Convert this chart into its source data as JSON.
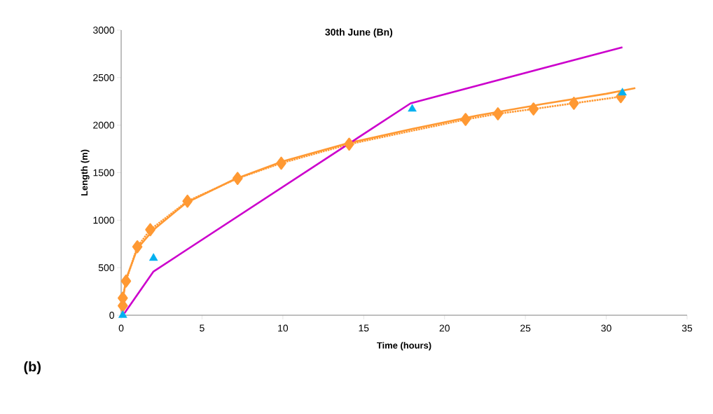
{
  "chart_data": {
    "type": "line",
    "title": "30th June (Bn)",
    "xlabel": "Time (hours)",
    "ylabel": "Length (m)",
    "annotations": [
      "(b)"
    ],
    "xlim": [
      0,
      35
    ],
    "xticks": [
      0,
      5,
      10,
      15,
      20,
      25,
      30,
      35
    ],
    "ylim": [
      0,
      3000
    ],
    "yticks": [
      0,
      500,
      1000,
      1500,
      2000,
      2500,
      3000
    ],
    "grid": false,
    "series": [
      {
        "color": "#ff9933",
        "marker": "diamond",
        "line_style": "dotted",
        "x": [
          0.1,
          0.1,
          0.3,
          1,
          1.8,
          4.1,
          7.2,
          9.9,
          14.1,
          21.3,
          23.3,
          25.5,
          28,
          30.9
        ],
        "values": [
          100,
          180,
          360,
          720,
          900,
          1200,
          1440,
          1600,
          1800,
          2060,
          2120,
          2170,
          2230,
          2300
        ]
      },
      {
        "color": "#ff9933",
        "marker": "none",
        "line_style": "solid",
        "x": [
          0,
          0.3,
          1,
          2,
          4,
          7,
          10,
          14,
          18,
          22,
          26,
          30,
          31.8
        ],
        "values": [
          50,
          380,
          700,
          900,
          1180,
          1430,
          1620,
          1810,
          1960,
          2100,
          2220,
          2330,
          2390
        ]
      },
      {
        "color": "#cc00cc",
        "marker": "none",
        "line_style": "solid",
        "x": [
          0.2,
          2,
          17.9,
          31
        ],
        "values": [
          20,
          460,
          2230,
          2820
        ]
      },
      {
        "type": "scatter",
        "color": "#00b0f0",
        "marker": "triangle",
        "x": [
          0.1,
          2,
          18,
          31
        ],
        "values": [
          0,
          600,
          2170,
          2340
        ]
      }
    ]
  }
}
